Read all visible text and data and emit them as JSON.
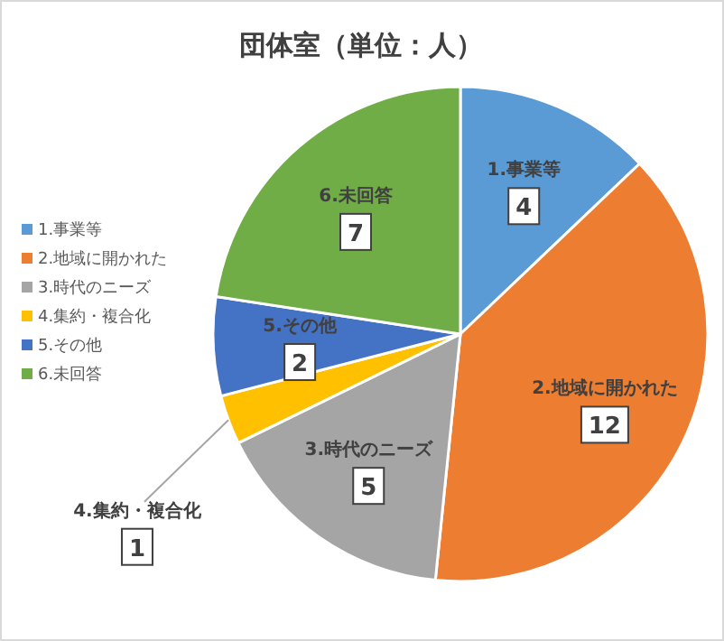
{
  "chart_data": {
    "type": "pie",
    "title": "団体室（単位：人）",
    "categories": [
      "1.事業等",
      "2.地域に開かれた",
      "3.時代のニーズ",
      "4.集約・複合化",
      "5.その他",
      "6.未回答"
    ],
    "values": [
      4,
      12,
      5,
      1,
      2,
      7
    ],
    "colors": [
      "#5b9bd5",
      "#ed7d31",
      "#a5a5a5",
      "#ffc000",
      "#4472c4",
      "#70ad47"
    ],
    "legend": "left",
    "data_labels": true
  }
}
